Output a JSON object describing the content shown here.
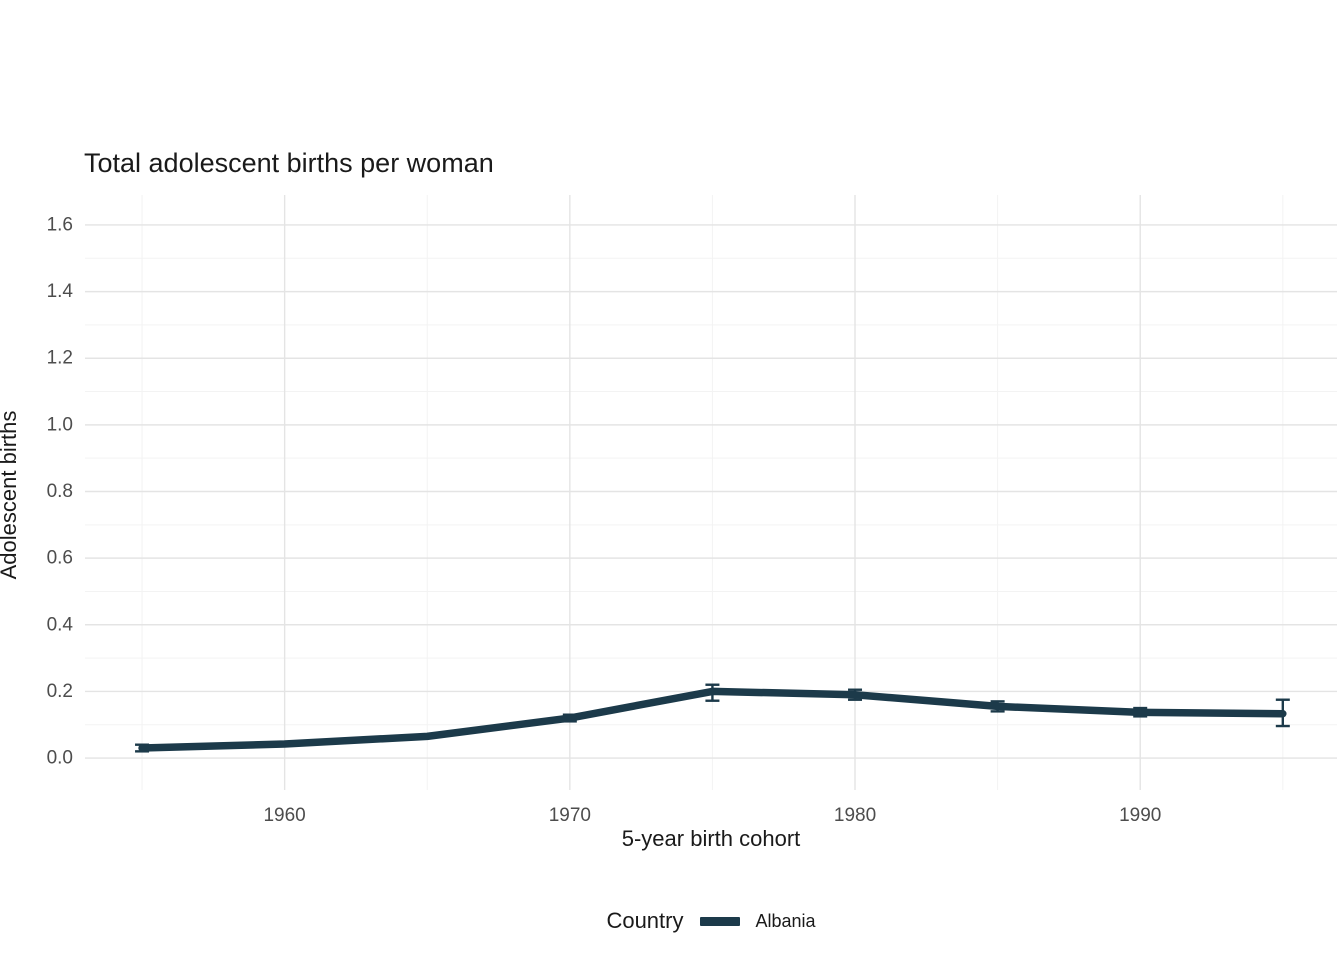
{
  "chart_data": {
    "type": "line",
    "title": "Total adolescent births per woman",
    "xlabel": "5-year birth cohort",
    "ylabel": "Adolescent births",
    "legend": {
      "title": "Country",
      "entries": [
        {
          "label": "Albania",
          "color": "#1c3a4a"
        }
      ],
      "position": "bottom"
    },
    "grid": true,
    "x": [
      1955,
      1960,
      1965,
      1970,
      1975,
      1980,
      1985,
      1990,
      1995
    ],
    "series": [
      {
        "name": "Albania",
        "color": "#1c3a4a",
        "values": [
          0.03,
          0.042,
          0.065,
          0.12,
          0.2,
          0.19,
          0.155,
          0.137,
          0.133
        ],
        "ymin": [
          0.02,
          null,
          null,
          0.11,
          0.172,
          0.175,
          0.14,
          0.125,
          0.096
        ],
        "ymax": [
          0.04,
          null,
          null,
          0.13,
          0.22,
          0.205,
          0.17,
          0.15,
          0.175
        ]
      }
    ],
    "x_ticks": [
      1960,
      1970,
      1980,
      1990
    ],
    "x_minor_ticks": [
      1955,
      1965,
      1975,
      1985,
      1995
    ],
    "y_ticks": [
      0.0,
      0.2,
      0.4,
      0.6,
      0.8,
      1.0,
      1.2,
      1.4,
      1.6
    ],
    "xlim": [
      1953,
      1996.9
    ],
    "ylim": [
      -0.096,
      1.69
    ]
  },
  "colors": {
    "major_grid": "#e4e4e4",
    "minor_grid": "#f3f3f3",
    "tick_text": "#4d4d4d",
    "text": "#1a1a1a"
  }
}
